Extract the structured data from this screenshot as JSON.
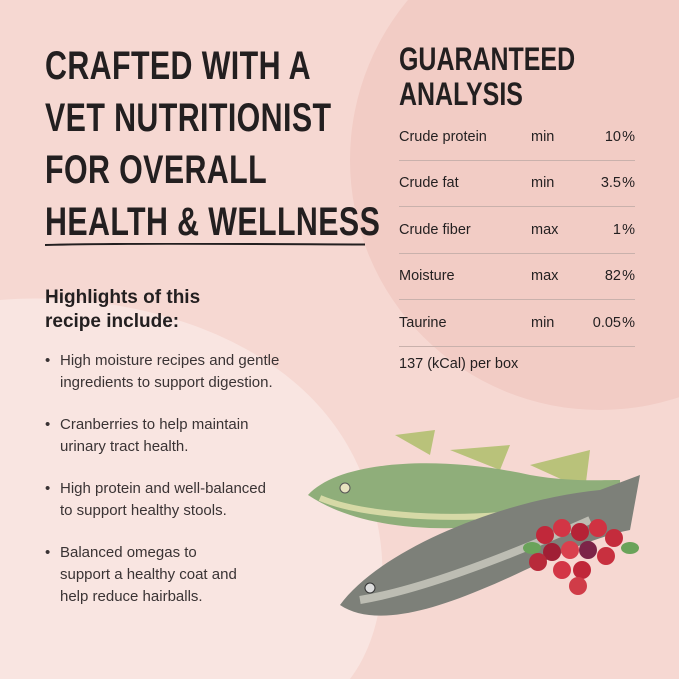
{
  "headline": [
    "CRAFTED WITH A",
    "VET NUTRITIONIST",
    "FOR OVERALL",
    "HEALTH & WELLNESS"
  ],
  "highlights": {
    "title": [
      "Highlights of this",
      "recipe include:"
    ],
    "items": [
      [
        "High moisture recipes and gentle",
        "ingredients to support digestion."
      ],
      [
        "Cranberries to help maintain",
        "urinary tract health."
      ],
      [
        "High protein and well-balanced",
        "to support healthy stools."
      ],
      [
        "Balanced omegas to",
        "support a healthy coat and",
        "help reduce hairballs."
      ]
    ]
  },
  "analysis": {
    "title": [
      "GUARANTEED",
      "ANALYSIS"
    ],
    "rows": [
      {
        "label": "Crude protein",
        "qualifier": "min",
        "value": "10",
        "unit": "%"
      },
      {
        "label": "Crude fat",
        "qualifier": "min",
        "value": "3.5",
        "unit": "%"
      },
      {
        "label": "Crude fiber",
        "qualifier": "max",
        "value": "1",
        "unit": "%"
      },
      {
        "label": "Moisture",
        "qualifier": "max",
        "value": "82",
        "unit": "%"
      },
      {
        "label": "Taurine",
        "qualifier": "min",
        "value": "0.05",
        "unit": "%"
      }
    ],
    "calories": "137 (kCal) per box"
  },
  "colors": {
    "background": "#f6d8d2",
    "blob_light": "#f9e5e1",
    "blob_dark": "#f2ccc5",
    "text": "#231f20"
  }
}
